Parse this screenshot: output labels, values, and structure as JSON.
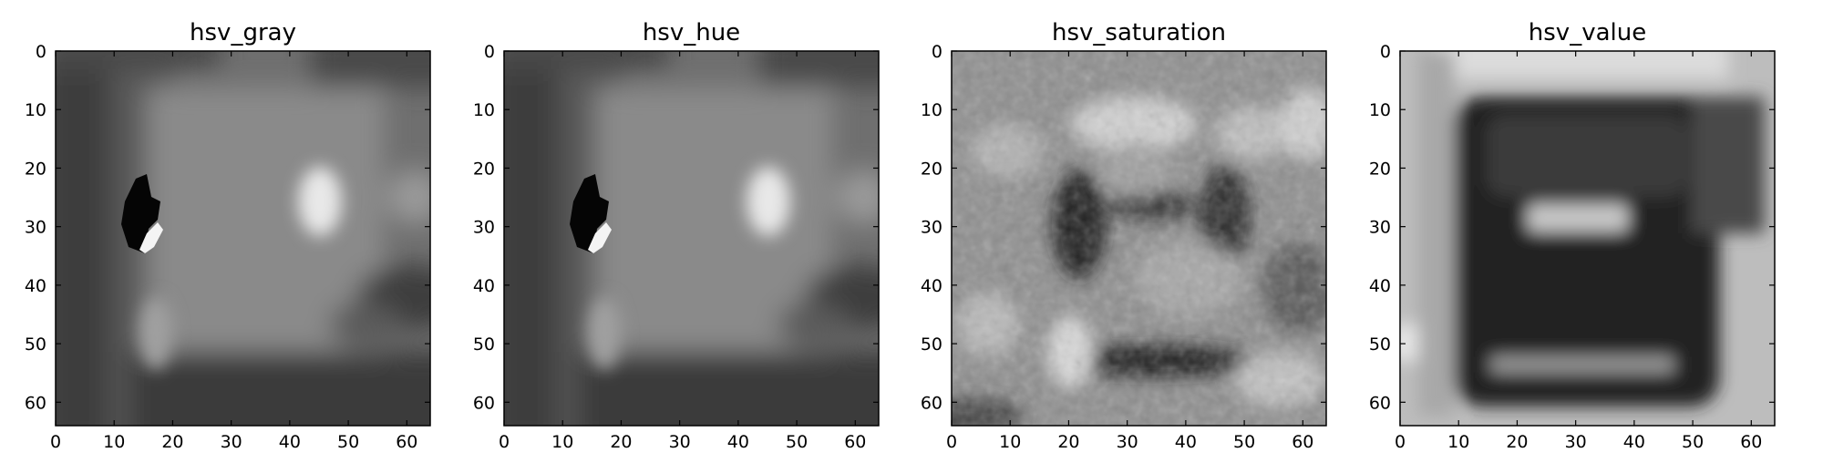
{
  "chart_data": [
    {
      "type": "heatmap",
      "title": "hsv_gray",
      "colormap": "gray",
      "image_size": [
        64,
        64
      ],
      "xlim": [
        0,
        64
      ],
      "ylim": [
        64,
        0
      ],
      "x_ticks": [
        "0",
        "10",
        "20",
        "30",
        "40",
        "50",
        "60"
      ],
      "y_ticks": [
        "0",
        "10",
        "20",
        "30",
        "40",
        "50",
        "60"
      ]
    },
    {
      "type": "heatmap",
      "title": "hsv_hue",
      "colormap": "gray",
      "image_size": [
        64,
        64
      ],
      "xlim": [
        0,
        64
      ],
      "ylim": [
        64,
        0
      ],
      "x_ticks": [
        "0",
        "10",
        "20",
        "30",
        "40",
        "50",
        "60"
      ],
      "y_ticks": [
        "0",
        "10",
        "20",
        "30",
        "40",
        "50",
        "60"
      ]
    },
    {
      "type": "heatmap",
      "title": "hsv_saturation",
      "colormap": "gray",
      "image_size": [
        64,
        64
      ],
      "xlim": [
        0,
        64
      ],
      "ylim": [
        64,
        0
      ],
      "x_ticks": [
        "0",
        "10",
        "20",
        "30",
        "40",
        "50",
        "60"
      ],
      "y_ticks": [
        "0",
        "10",
        "20",
        "30",
        "40",
        "50",
        "60"
      ]
    },
    {
      "type": "heatmap",
      "title": "hsv_value",
      "colormap": "gray",
      "image_size": [
        64,
        64
      ],
      "xlim": [
        0,
        64
      ],
      "ylim": [
        64,
        0
      ],
      "x_ticks": [
        "0",
        "10",
        "20",
        "30",
        "40",
        "50",
        "60"
      ],
      "y_ticks": [
        "0",
        "10",
        "20",
        "30",
        "40",
        "50",
        "60"
      ]
    }
  ]
}
